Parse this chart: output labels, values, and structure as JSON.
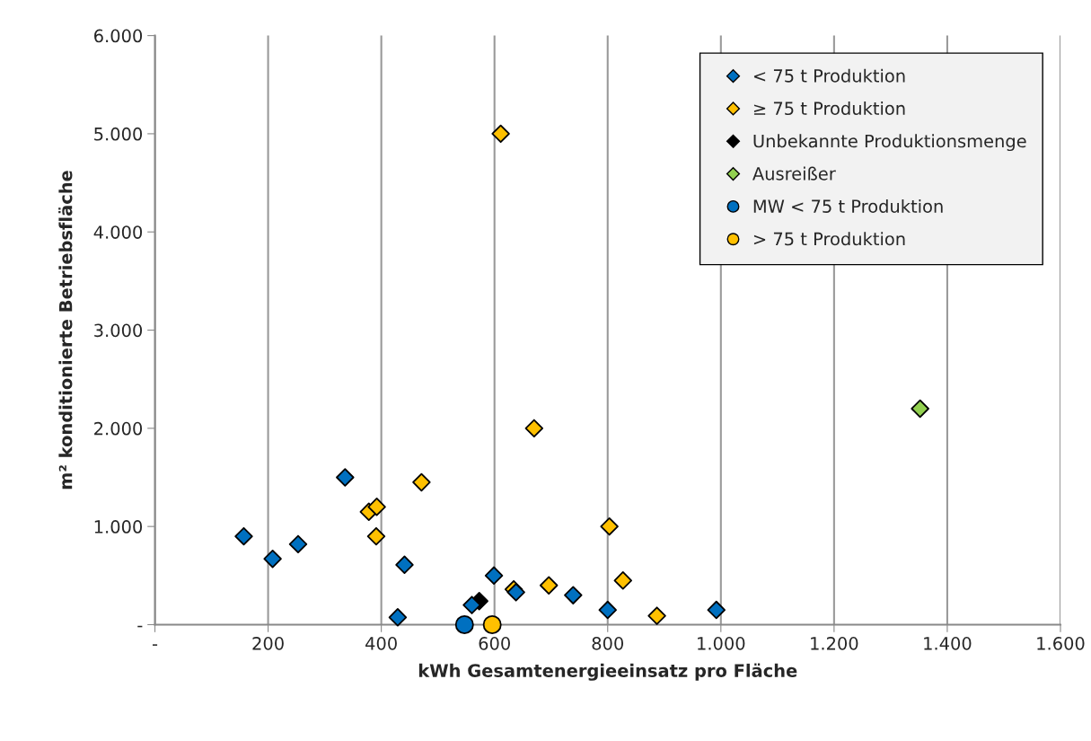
{
  "chart_data": {
    "type": "scatter",
    "xlabel": "kWh Gesamtenergieeinsatz pro Fläche",
    "ylabel": "m² konditionierte Betriebsfläche",
    "xlim": [
      0,
      1600
    ],
    "ylim": [
      0,
      6000
    ],
    "xticks": [
      {
        "value": 0,
        "label": "-"
      },
      200,
      400,
      600,
      800,
      {
        "value": 1000,
        "label": "1.000"
      },
      {
        "value": 1200,
        "label": "1.200"
      },
      {
        "value": 1400,
        "label": "1.400"
      },
      {
        "value": 1600,
        "label": "1.600"
      }
    ],
    "yticks": [
      {
        "value": 0,
        "label": "-"
      },
      {
        "value": 1000,
        "label": "1.000"
      },
      {
        "value": 2000,
        "label": "2.000"
      },
      {
        "value": 3000,
        "label": "3.000"
      },
      {
        "value": 4000,
        "label": "4.000"
      },
      {
        "value": 5000,
        "label": "5.000"
      },
      {
        "value": 6000,
        "label": "6.000"
      }
    ],
    "grid": "x",
    "legend": "top right",
    "series": [
      {
        "name": "< 75 t Produktion",
        "color": "#0070c0",
        "marker": "diamond",
        "x": [
          157,
          208,
          253,
          336,
          441,
          429,
          599,
          560,
          638,
          739,
          800,
          992
        ],
        "values": [
          900,
          670,
          820,
          1500,
          610,
          75,
          500,
          200,
          330,
          300,
          150,
          150
        ]
      },
      {
        "name": "≥ 75 t Produktion",
        "color": "#ffc000",
        "marker": "diamond",
        "x": [
          611,
          670,
          471,
          378,
          392,
          391,
          803,
          827,
          634,
          696,
          887
        ],
        "values": [
          5000,
          2000,
          1450,
          1150,
          1200,
          900,
          1000,
          450,
          360,
          400,
          90
        ]
      },
      {
        "name": "Unbekannte Produktionsmenge",
        "color": "#000000",
        "marker": "diamond",
        "x": [
          573
        ],
        "values": [
          240
        ]
      },
      {
        "name": "Ausreißer",
        "color": "#92d050",
        "marker": "diamond",
        "x": [
          1352
        ],
        "values": [
          2200
        ]
      },
      {
        "name": "MW < 75 t Produktion",
        "color": "#0070c0",
        "marker": "circle",
        "x": [
          547
        ],
        "values": [
          0
        ]
      },
      {
        "name": "> 75 t Produktion",
        "color": "#ffc000",
        "marker": "circle",
        "x": [
          596
        ],
        "values": [
          0
        ]
      }
    ]
  }
}
